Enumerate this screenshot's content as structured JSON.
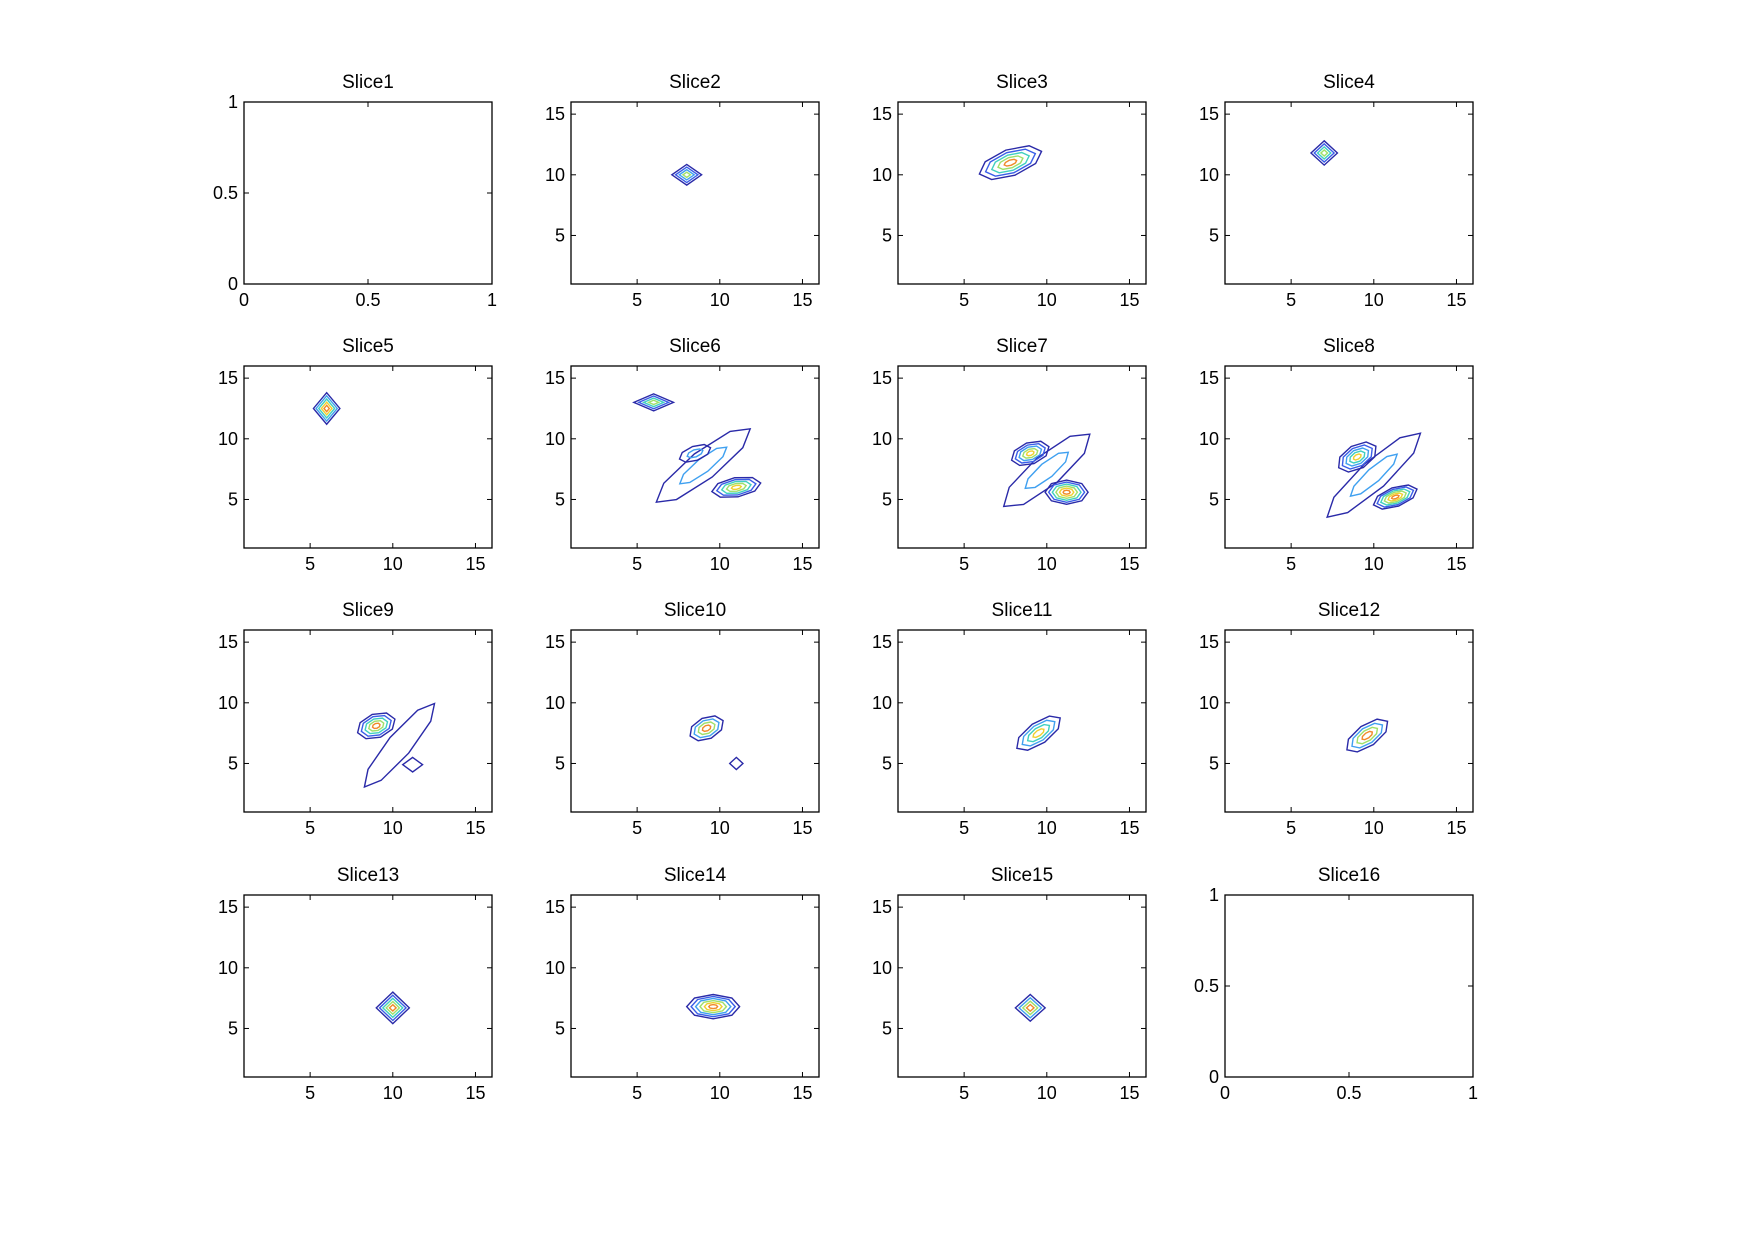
{
  "figure": {
    "background": "#ffffff",
    "layout": "4x4 grid of contour subplots"
  },
  "chart_data": [
    {
      "type": "contour",
      "title": "Slice1",
      "xlim": [
        0,
        1
      ],
      "ylim": [
        0,
        1
      ],
      "xticks": [
        0,
        0.5,
        1
      ],
      "xtick_labels": [
        "0",
        "0.5",
        "1"
      ],
      "yticks": [
        0,
        0.5,
        1
      ],
      "ytick_labels": [
        "0",
        "0.5",
        "1"
      ],
      "blobs": []
    },
    {
      "type": "contour",
      "title": "Slice2",
      "xlim": [
        1,
        16
      ],
      "ylim": [
        1,
        16
      ],
      "xticks": [
        5,
        10,
        15
      ],
      "xtick_labels": [
        "5",
        "10",
        "15"
      ],
      "yticks": [
        5,
        10,
        15
      ],
      "ytick_labels": [
        "5",
        "10",
        "15"
      ],
      "blobs": [
        {
          "cx": 8,
          "cy": 10,
          "rx": 0.9,
          "ry": 0.85,
          "angle": 0,
          "levels": 4,
          "peak": 0.5,
          "shape": "diamond"
        }
      ]
    },
    {
      "type": "contour",
      "title": "Slice3",
      "xlim": [
        1,
        16
      ],
      "ylim": [
        1,
        16
      ],
      "xticks": [
        5,
        10,
        15
      ],
      "xtick_labels": [
        "5",
        "10",
        "15"
      ],
      "yticks": [
        5,
        10,
        15
      ],
      "ytick_labels": [
        "5",
        "10",
        "15"
      ],
      "blobs": [
        {
          "cx": 7.8,
          "cy": 11,
          "rx": 2.0,
          "ry": 1.1,
          "angle": -20,
          "levels": 5,
          "peak": 0.85,
          "shape": "oval"
        }
      ]
    },
    {
      "type": "contour",
      "title": "Slice4",
      "xlim": [
        1,
        16
      ],
      "ylim": [
        1,
        16
      ],
      "xticks": [
        5,
        10,
        15
      ],
      "xtick_labels": [
        "5",
        "10",
        "15"
      ],
      "yticks": [
        5,
        10,
        15
      ],
      "ytick_labels": [
        "5",
        "10",
        "15"
      ],
      "blobs": [
        {
          "cx": 7,
          "cy": 11.8,
          "rx": 0.8,
          "ry": 1.0,
          "angle": 0,
          "levels": 4,
          "peak": 0.6,
          "shape": "diamond"
        }
      ]
    },
    {
      "type": "contour",
      "title": "Slice5",
      "xlim": [
        1,
        16
      ],
      "ylim": [
        1,
        16
      ],
      "xticks": [
        5,
        10,
        15
      ],
      "xtick_labels": [
        "5",
        "10",
        "15"
      ],
      "yticks": [
        5,
        10,
        15
      ],
      "ytick_labels": [
        "5",
        "10",
        "15"
      ],
      "blobs": [
        {
          "cx": 6,
          "cy": 12.5,
          "rx": 0.8,
          "ry": 1.3,
          "angle": 0,
          "levels": 5,
          "peak": 0.9,
          "shape": "diamond"
        }
      ]
    },
    {
      "type": "contour",
      "title": "Slice6",
      "xlim": [
        1,
        16
      ],
      "ylim": [
        1,
        16
      ],
      "xticks": [
        5,
        10,
        15
      ],
      "xtick_labels": [
        "5",
        "10",
        "15"
      ],
      "yticks": [
        5,
        10,
        15
      ],
      "ytick_labels": [
        "5",
        "10",
        "15"
      ],
      "blobs": [
        {
          "cx": 6,
          "cy": 13,
          "rx": 1.2,
          "ry": 0.7,
          "angle": 0,
          "levels": 4,
          "peak": 0.6,
          "shape": "diamond"
        },
        {
          "cx": 9,
          "cy": 7.8,
          "rx": 3.6,
          "ry": 1.2,
          "angle": -38,
          "levels": 2,
          "peak": 0.25,
          "shape": "oval"
        },
        {
          "cx": 11,
          "cy": 6,
          "rx": 1.5,
          "ry": 0.8,
          "angle": -10,
          "levels": 5,
          "peak": 0.75,
          "shape": "oval"
        },
        {
          "cx": 8.5,
          "cy": 8.8,
          "rx": 1.0,
          "ry": 0.6,
          "angle": -20,
          "levels": 2,
          "peak": 0.3,
          "shape": "oval"
        }
      ]
    },
    {
      "type": "contour",
      "title": "Slice7",
      "xlim": [
        1,
        16
      ],
      "ylim": [
        1,
        16
      ],
      "xticks": [
        5,
        10,
        15
      ],
      "xtick_labels": [
        "5",
        "10",
        "15"
      ],
      "yticks": [
        5,
        10,
        15
      ],
      "ytick_labels": [
        "5",
        "10",
        "15"
      ],
      "blobs": [
        {
          "cx": 10,
          "cy": 7.4,
          "rx": 3.4,
          "ry": 1.3,
          "angle": -40,
          "levels": 2,
          "peak": 0.25,
          "shape": "oval"
        },
        {
          "cx": 9,
          "cy": 8.8,
          "rx": 1.2,
          "ry": 0.9,
          "angle": -20,
          "levels": 5,
          "peak": 0.7,
          "shape": "oval"
        },
        {
          "cx": 11.2,
          "cy": 5.6,
          "rx": 1.3,
          "ry": 1.0,
          "angle": 0,
          "levels": 6,
          "peak": 0.9,
          "shape": "oval"
        }
      ]
    },
    {
      "type": "contour",
      "title": "Slice8",
      "xlim": [
        1,
        16
      ],
      "ylim": [
        1,
        16
      ],
      "xticks": [
        5,
        10,
        15
      ],
      "xtick_labels": [
        "5",
        "10",
        "15"
      ],
      "yticks": [
        5,
        10,
        15
      ],
      "ytick_labels": [
        "5",
        "10",
        "15"
      ],
      "blobs": [
        {
          "cx": 10,
          "cy": 7.0,
          "rx": 3.8,
          "ry": 1.2,
          "angle": -42,
          "levels": 2,
          "peak": 0.25,
          "shape": "oval"
        },
        {
          "cx": 9,
          "cy": 8.5,
          "rx": 1.3,
          "ry": 1.0,
          "angle": -30,
          "levels": 5,
          "peak": 0.65,
          "shape": "oval"
        },
        {
          "cx": 11.3,
          "cy": 5.2,
          "rx": 1.4,
          "ry": 0.8,
          "angle": -20,
          "levels": 6,
          "peak": 0.9,
          "shape": "oval"
        }
      ]
    },
    {
      "type": "contour",
      "title": "Slice9",
      "xlim": [
        1,
        16
      ],
      "ylim": [
        1,
        16
      ],
      "xticks": [
        5,
        10,
        15
      ],
      "xtick_labels": [
        "5",
        "10",
        "15"
      ],
      "yticks": [
        5,
        10,
        15
      ],
      "ytick_labels": [
        "5",
        "10",
        "15"
      ],
      "blobs": [
        {
          "cx": 10.4,
          "cy": 6.5,
          "rx": 3.3,
          "ry": 1.0,
          "angle": -50,
          "levels": 1,
          "peak": 0.15,
          "shape": "oval"
        },
        {
          "cx": 9,
          "cy": 8.1,
          "rx": 1.2,
          "ry": 1.0,
          "angle": -20,
          "levels": 5,
          "peak": 0.85,
          "shape": "oval"
        },
        {
          "cx": 11.2,
          "cy": 4.9,
          "rx": 0.6,
          "ry": 0.6,
          "angle": 0,
          "levels": 1,
          "peak": 0.2,
          "shape": "diamond"
        }
      ]
    },
    {
      "type": "contour",
      "title": "Slice10",
      "xlim": [
        1,
        16
      ],
      "ylim": [
        1,
        16
      ],
      "xticks": [
        5,
        10,
        15
      ],
      "xtick_labels": [
        "5",
        "10",
        "15"
      ],
      "yticks": [
        5,
        10,
        15
      ],
      "ytick_labels": [
        "5",
        "10",
        "15"
      ],
      "blobs": [
        {
          "cx": 9.2,
          "cy": 7.9,
          "rx": 1.1,
          "ry": 0.9,
          "angle": -25,
          "levels": 4,
          "peak": 0.8,
          "shape": "oval"
        },
        {
          "cx": 11,
          "cy": 5,
          "rx": 0.4,
          "ry": 0.5,
          "angle": 0,
          "levels": 1,
          "peak": 0.1,
          "shape": "diamond"
        }
      ]
    },
    {
      "type": "contour",
      "title": "Slice11",
      "xlim": [
        1,
        16
      ],
      "ylim": [
        1,
        16
      ],
      "xticks": [
        5,
        10,
        15
      ],
      "xtick_labels": [
        "5",
        "10",
        "15"
      ],
      "yticks": [
        5,
        10,
        15
      ],
      "ytick_labels": [
        "5",
        "10",
        "15"
      ],
      "blobs": [
        {
          "cx": 9.5,
          "cy": 7.5,
          "rx": 1.6,
          "ry": 0.9,
          "angle": -35,
          "levels": 4,
          "peak": 0.75,
          "shape": "oval"
        }
      ]
    },
    {
      "type": "contour",
      "title": "Slice12",
      "xlim": [
        1,
        16
      ],
      "ylim": [
        1,
        16
      ],
      "xticks": [
        5,
        10,
        15
      ],
      "xtick_labels": [
        "5",
        "10",
        "15"
      ],
      "yticks": [
        5,
        10,
        15
      ],
      "ytick_labels": [
        "5",
        "10",
        "15"
      ],
      "blobs": [
        {
          "cx": 9.6,
          "cy": 7.3,
          "rx": 1.5,
          "ry": 0.9,
          "angle": -35,
          "levels": 4,
          "peak": 0.9,
          "shape": "oval"
        }
      ]
    },
    {
      "type": "contour",
      "title": "Slice13",
      "xlim": [
        1,
        16
      ],
      "ylim": [
        1,
        16
      ],
      "xticks": [
        5,
        10,
        15
      ],
      "xtick_labels": [
        "5",
        "10",
        "15"
      ],
      "yticks": [
        5,
        10,
        15
      ],
      "ytick_labels": [
        "5",
        "10",
        "15"
      ],
      "blobs": [
        {
          "cx": 10,
          "cy": 6.7,
          "rx": 1.0,
          "ry": 1.3,
          "angle": 0,
          "levels": 5,
          "peak": 0.85,
          "shape": "diamond"
        }
      ]
    },
    {
      "type": "contour",
      "title": "Slice14",
      "xlim": [
        1,
        16
      ],
      "ylim": [
        1,
        16
      ],
      "xticks": [
        5,
        10,
        15
      ],
      "xtick_labels": [
        "5",
        "10",
        "15"
      ],
      "yticks": [
        5,
        10,
        15
      ],
      "ytick_labels": [
        "5",
        "10",
        "15"
      ],
      "blobs": [
        {
          "cx": 9.6,
          "cy": 6.8,
          "rx": 1.6,
          "ry": 1.0,
          "angle": 0,
          "levels": 6,
          "peak": 0.85,
          "shape": "oval"
        }
      ]
    },
    {
      "type": "contour",
      "title": "Slice15",
      "xlim": [
        1,
        16
      ],
      "ylim": [
        1,
        16
      ],
      "xticks": [
        5,
        10,
        15
      ],
      "xtick_labels": [
        "5",
        "10",
        "15"
      ],
      "yticks": [
        5,
        10,
        15
      ],
      "ytick_labels": [
        "5",
        "10",
        "15"
      ],
      "blobs": [
        {
          "cx": 9,
          "cy": 6.7,
          "rx": 0.9,
          "ry": 1.1,
          "angle": 0,
          "levels": 4,
          "peak": 0.85,
          "shape": "diamond"
        }
      ]
    },
    {
      "type": "contour",
      "title": "Slice16",
      "xlim": [
        0,
        1
      ],
      "ylim": [
        0,
        1
      ],
      "xticks": [
        0,
        0.5,
        1
      ],
      "xtick_labels": [
        "0",
        "0.5",
        "1"
      ],
      "yticks": [
        0,
        0.5,
        1
      ],
      "ytick_labels": [
        "0",
        "0.5",
        "1"
      ],
      "blobs": []
    }
  ],
  "colors": {
    "axes": "#000000",
    "contour_levels": [
      "#2a2aa8",
      "#3a5ee8",
      "#3fa0f0",
      "#40d0c0",
      "#9fe06a",
      "#f0d030",
      "#f08a2a",
      "#d62020"
    ]
  }
}
